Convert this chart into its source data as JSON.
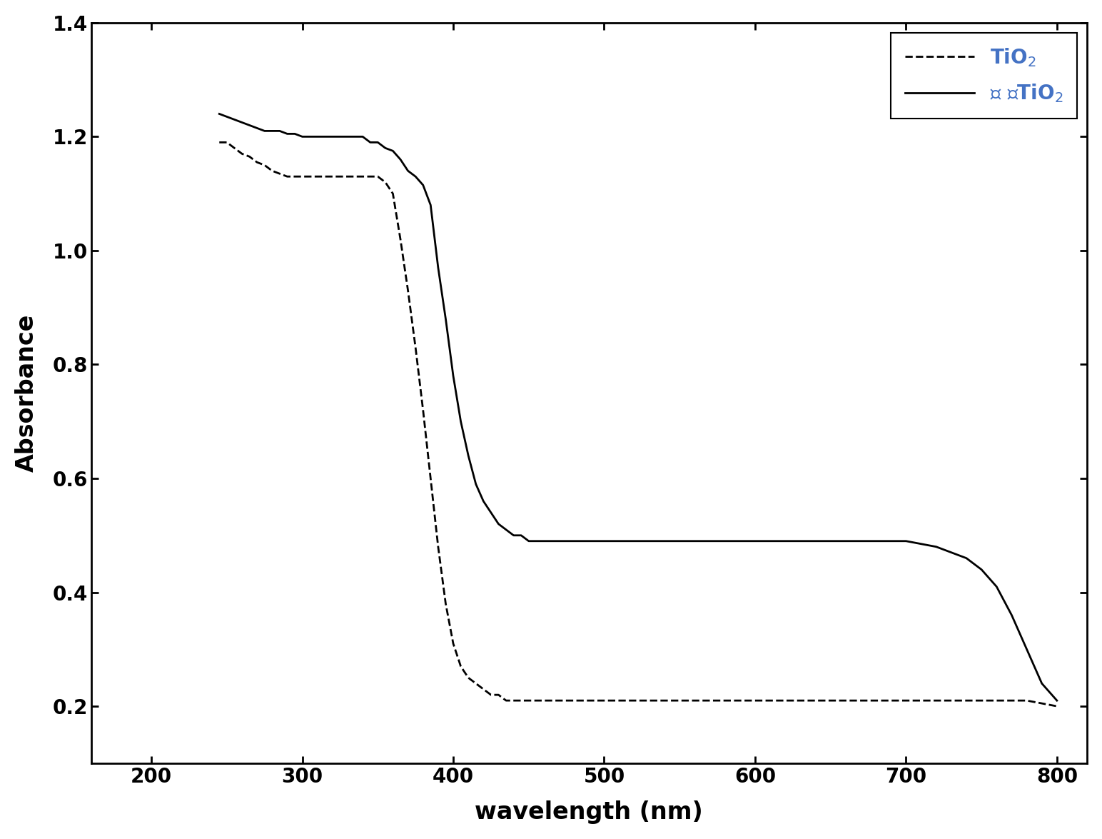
{
  "xlabel": "wavelength (nm)",
  "ylabel": "Absorbance",
  "xlim": [
    160,
    820
  ],
  "ylim": [
    0.1,
    1.4
  ],
  "xticks": [
    200,
    300,
    400,
    500,
    600,
    700,
    800
  ],
  "yticks": [
    0.2,
    0.4,
    0.6,
    0.8,
    1.0,
    1.2,
    1.4
  ],
  "legend1": "TiO$_2$",
  "legend2": "敏 化TiO$_2$",
  "background_color": "#ffffff",
  "line_color": "#000000",
  "legend_color": "#4472c4",
  "tio2_x": [
    245,
    250,
    255,
    260,
    265,
    270,
    275,
    280,
    285,
    290,
    295,
    300,
    305,
    310,
    315,
    320,
    325,
    330,
    335,
    340,
    345,
    350,
    355,
    360,
    365,
    370,
    375,
    380,
    385,
    390,
    395,
    400,
    405,
    410,
    415,
    420,
    425,
    430,
    435,
    440,
    445,
    450,
    460,
    470,
    480,
    490,
    500,
    520,
    540,
    560,
    580,
    600,
    620,
    640,
    660,
    680,
    700,
    720,
    740,
    760,
    780,
    800
  ],
  "tio2_y": [
    1.19,
    1.19,
    1.18,
    1.17,
    1.165,
    1.155,
    1.15,
    1.14,
    1.135,
    1.13,
    1.13,
    1.13,
    1.13,
    1.13,
    1.13,
    1.13,
    1.13,
    1.13,
    1.13,
    1.13,
    1.13,
    1.13,
    1.12,
    1.1,
    1.02,
    0.93,
    0.83,
    0.72,
    0.6,
    0.48,
    0.38,
    0.31,
    0.27,
    0.25,
    0.24,
    0.23,
    0.22,
    0.22,
    0.21,
    0.21,
    0.21,
    0.21,
    0.21,
    0.21,
    0.21,
    0.21,
    0.21,
    0.21,
    0.21,
    0.21,
    0.21,
    0.21,
    0.21,
    0.21,
    0.21,
    0.21,
    0.21,
    0.21,
    0.21,
    0.21,
    0.21,
    0.2
  ],
  "sens_x": [
    245,
    250,
    255,
    260,
    265,
    270,
    275,
    280,
    285,
    290,
    295,
    300,
    305,
    310,
    315,
    320,
    325,
    330,
    335,
    340,
    345,
    350,
    355,
    360,
    365,
    370,
    375,
    380,
    385,
    390,
    395,
    400,
    405,
    410,
    415,
    420,
    425,
    430,
    435,
    440,
    445,
    450,
    460,
    470,
    480,
    490,
    500,
    510,
    520,
    530,
    540,
    550,
    560,
    570,
    580,
    590,
    600,
    620,
    640,
    660,
    680,
    700,
    710,
    720,
    730,
    740,
    750,
    760,
    770,
    780,
    790,
    800
  ],
  "sens_y": [
    1.24,
    1.235,
    1.23,
    1.225,
    1.22,
    1.215,
    1.21,
    1.21,
    1.21,
    1.205,
    1.205,
    1.2,
    1.2,
    1.2,
    1.2,
    1.2,
    1.2,
    1.2,
    1.2,
    1.2,
    1.19,
    1.19,
    1.18,
    1.175,
    1.16,
    1.14,
    1.13,
    1.115,
    1.08,
    0.97,
    0.88,
    0.78,
    0.7,
    0.64,
    0.59,
    0.56,
    0.54,
    0.52,
    0.51,
    0.5,
    0.5,
    0.49,
    0.49,
    0.49,
    0.49,
    0.49,
    0.49,
    0.49,
    0.49,
    0.49,
    0.49,
    0.49,
    0.49,
    0.49,
    0.49,
    0.49,
    0.49,
    0.49,
    0.49,
    0.49,
    0.49,
    0.49,
    0.485,
    0.48,
    0.47,
    0.46,
    0.44,
    0.41,
    0.36,
    0.3,
    0.24,
    0.21
  ]
}
